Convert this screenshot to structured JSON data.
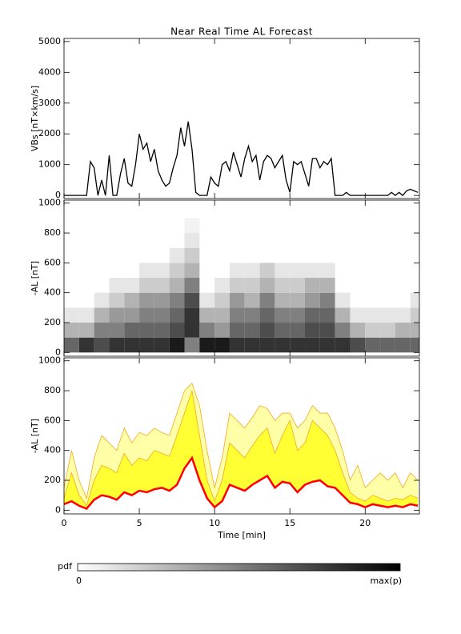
{
  "chart_data": [
    {
      "type": "line",
      "title": "Near Real Time AL Forecast",
      "ylabel": "VBs [nT×km/s]",
      "color": "#000000",
      "xlim": [
        0,
        23.6
      ],
      "xticks": [
        0,
        5,
        10,
        15,
        20
      ],
      "show_xtick_labels": false,
      "ylim": [
        -100,
        5100
      ],
      "yticks": [
        0,
        1000,
        2000,
        3000,
        4000,
        5000
      ],
      "x": [
        0,
        0.25,
        0.5,
        0.75,
        1,
        1.25,
        1.5,
        1.75,
        2,
        2.25,
        2.5,
        2.75,
        3,
        3.25,
        3.5,
        3.75,
        4,
        4.25,
        4.5,
        4.75,
        5,
        5.25,
        5.5,
        5.75,
        6,
        6.25,
        6.5,
        6.75,
        7,
        7.25,
        7.5,
        7.75,
        8,
        8.25,
        8.5,
        8.75,
        9,
        9.25,
        9.5,
        9.75,
        10,
        10.25,
        10.5,
        10.75,
        11,
        11.25,
        11.5,
        11.75,
        12,
        12.25,
        12.5,
        12.75,
        13,
        13.25,
        13.5,
        13.75,
        14,
        14.25,
        14.5,
        14.75,
        15,
        15.25,
        15.5,
        15.75,
        16,
        16.25,
        16.5,
        16.75,
        17,
        17.25,
        17.5,
        17.75,
        18,
        18.25,
        18.5,
        18.75,
        19,
        19.25,
        19.5,
        19.75,
        20,
        20.25,
        20.5,
        20.75,
        21,
        21.25,
        21.5,
        21.75,
        22,
        22.25,
        22.5,
        22.75,
        23,
        23.25,
        23.5
      ],
      "values": [
        0,
        0,
        0,
        0,
        0,
        0,
        0,
        1100,
        900,
        0,
        500,
        0,
        1300,
        0,
        0,
        700,
        1200,
        400,
        300,
        1000,
        2000,
        1500,
        1700,
        1100,
        1500,
        800,
        500,
        300,
        400,
        900,
        1300,
        2200,
        1600,
        2400,
        1500,
        100,
        0,
        0,
        0,
        600,
        400,
        300,
        1000,
        1100,
        800,
        1400,
        1000,
        600,
        1200,
        1600,
        1100,
        1300,
        500,
        1100,
        1300,
        1200,
        900,
        1100,
        1300,
        500,
        100,
        1100,
        1000,
        1100,
        700,
        300,
        1200,
        1200,
        900,
        1100,
        1000,
        1200,
        0,
        0,
        0,
        100,
        0,
        0,
        0,
        0,
        0,
        0,
        0,
        0,
        0,
        0,
        0,
        100,
        0,
        100,
        0,
        150,
        200,
        150,
        100
      ]
    },
    {
      "type": "heatmap",
      "ylabel": "-AL [nT]",
      "colormap": [
        "#ffffff",
        "#000000"
      ],
      "xlim": [
        0,
        23.6
      ],
      "xticks": [
        0,
        5,
        10,
        15,
        20
      ],
      "show_xtick_labels": false,
      "ylim": [
        -25,
        1020
      ],
      "yticks": [
        0,
        200,
        400,
        600,
        800,
        1000
      ],
      "xbins": [
        0,
        1,
        2,
        3,
        4,
        5,
        6,
        7,
        8,
        9,
        10,
        11,
        12,
        13,
        14,
        15,
        16,
        17,
        18,
        19,
        20,
        21,
        22,
        23,
        23.6
      ],
      "ybins": [
        0,
        100,
        200,
        300,
        400,
        500,
        600,
        700,
        800,
        900,
        1000
      ],
      "z": [
        [
          0.6,
          0.3,
          0.1,
          0,
          0,
          0,
          0,
          0,
          0,
          0
        ],
        [
          0.8,
          0.3,
          0.1,
          0,
          0,
          0,
          0,
          0,
          0,
          0
        ],
        [
          0.7,
          0.5,
          0.3,
          0.1,
          0,
          0,
          0,
          0,
          0,
          0
        ],
        [
          0.8,
          0.5,
          0.4,
          0.2,
          0.1,
          0,
          0,
          0,
          0,
          0
        ],
        [
          0.8,
          0.6,
          0.4,
          0.3,
          0.1,
          0,
          0,
          0,
          0,
          0
        ],
        [
          0.8,
          0.6,
          0.5,
          0.4,
          0.2,
          0.1,
          0,
          0,
          0,
          0
        ],
        [
          0.8,
          0.6,
          0.5,
          0.4,
          0.2,
          0.1,
          0,
          0,
          0,
          0
        ],
        [
          0.9,
          0.7,
          0.6,
          0.5,
          0.3,
          0.2,
          0.1,
          0,
          0,
          0
        ],
        [
          0.5,
          0.8,
          0.8,
          0.7,
          0.5,
          0.3,
          0.2,
          0.1,
          0.05,
          0
        ],
        [
          0.9,
          0.5,
          0.3,
          0.1,
          0,
          0,
          0,
          0,
          0,
          0
        ],
        [
          0.9,
          0.4,
          0.3,
          0.2,
          0.1,
          0,
          0,
          0,
          0,
          0
        ],
        [
          0.8,
          0.6,
          0.5,
          0.4,
          0.2,
          0.1,
          0,
          0,
          0,
          0
        ],
        [
          0.8,
          0.6,
          0.5,
          0.3,
          0.2,
          0.1,
          0,
          0,
          0,
          0
        ],
        [
          0.8,
          0.7,
          0.6,
          0.5,
          0.3,
          0.2,
          0,
          0,
          0,
          0
        ],
        [
          0.8,
          0.6,
          0.5,
          0.3,
          0.2,
          0.1,
          0,
          0,
          0,
          0
        ],
        [
          0.8,
          0.6,
          0.5,
          0.3,
          0.2,
          0.1,
          0,
          0,
          0,
          0
        ],
        [
          0.8,
          0.7,
          0.6,
          0.4,
          0.3,
          0.1,
          0,
          0,
          0,
          0
        ],
        [
          0.8,
          0.7,
          0.6,
          0.5,
          0.3,
          0.1,
          0,
          0,
          0,
          0
        ],
        [
          0.8,
          0.5,
          0.3,
          0.1,
          0,
          0,
          0,
          0,
          0,
          0
        ],
        [
          0.7,
          0.3,
          0.1,
          0,
          0,
          0,
          0,
          0,
          0,
          0
        ],
        [
          0.6,
          0.2,
          0.1,
          0,
          0,
          0,
          0,
          0,
          0,
          0
        ],
        [
          0.6,
          0.2,
          0.1,
          0,
          0,
          0,
          0,
          0,
          0,
          0
        ],
        [
          0.6,
          0.3,
          0.1,
          0,
          0,
          0,
          0,
          0,
          0,
          0
        ],
        [
          0.6,
          0.3,
          0.2,
          0.1,
          0,
          0,
          0,
          0,
          0,
          0
        ]
      ],
      "colorbar": {
        "label": "pdf",
        "min_label": "0",
        "max_label": "max(p)"
      }
    },
    {
      "type": "band",
      "ylabel": "-AL [nT]",
      "xlabel": "Time [min]",
      "xlim": [
        0,
        23.6
      ],
      "xticks": [
        0,
        5,
        10,
        15,
        20
      ],
      "show_xtick_labels": true,
      "ylim": [
        -25,
        1020
      ],
      "yticks": [
        0,
        200,
        400,
        600,
        800,
        1000
      ],
      "x": [
        0,
        0.5,
        1,
        1.5,
        2,
        2.5,
        3,
        3.5,
        4,
        4.5,
        5,
        5.5,
        6,
        6.5,
        7,
        7.5,
        8,
        8.5,
        9,
        9.5,
        10,
        10.5,
        11,
        11.5,
        12,
        12.5,
        13,
        13.5,
        14,
        14.5,
        15,
        15.5,
        16,
        16.5,
        17,
        17.5,
        18,
        18.5,
        19,
        19.5,
        20,
        20.5,
        21,
        21.5,
        22,
        22.5,
        23,
        23.5
      ],
      "series": [
        {
          "color": "#f5a623",
          "fill": "#ffffa8",
          "line_width": 0.8,
          "values": [
            150,
            400,
            200,
            80,
            350,
            500,
            450,
            400,
            550,
            450,
            520,
            500,
            550,
            520,
            500,
            650,
            800,
            850,
            700,
            400,
            150,
            350,
            650,
            600,
            550,
            620,
            700,
            680,
            600,
            650,
            650,
            550,
            600,
            700,
            650,
            650,
            550,
            400,
            200,
            300,
            150,
            200,
            250,
            200,
            250,
            150,
            250,
            200
          ]
        },
        {
          "color": "#f5a623",
          "fill": "#ffff33",
          "line_width": 0.8,
          "values": [
            80,
            250,
            100,
            30,
            200,
            300,
            280,
            250,
            380,
            300,
            350,
            330,
            400,
            380,
            360,
            500,
            650,
            800,
            500,
            200,
            60,
            200,
            450,
            400,
            350,
            430,
            500,
            550,
            380,
            500,
            600,
            400,
            450,
            600,
            550,
            500,
            400,
            250,
            120,
            80,
            60,
            100,
            80,
            60,
            80,
            70,
            100,
            80
          ]
        },
        {
          "color": "#ff0000",
          "line_width": 2.5,
          "values": [
            40,
            60,
            30,
            10,
            70,
            100,
            90,
            70,
            120,
            100,
            130,
            120,
            140,
            150,
            130,
            170,
            280,
            350,
            200,
            80,
            20,
            60,
            170,
            150,
            130,
            170,
            200,
            230,
            150,
            190,
            180,
            120,
            170,
            190,
            200,
            160,
            150,
            100,
            50,
            40,
            20,
            40,
            30,
            20,
            30,
            20,
            40,
            30
          ]
        }
      ]
    }
  ]
}
